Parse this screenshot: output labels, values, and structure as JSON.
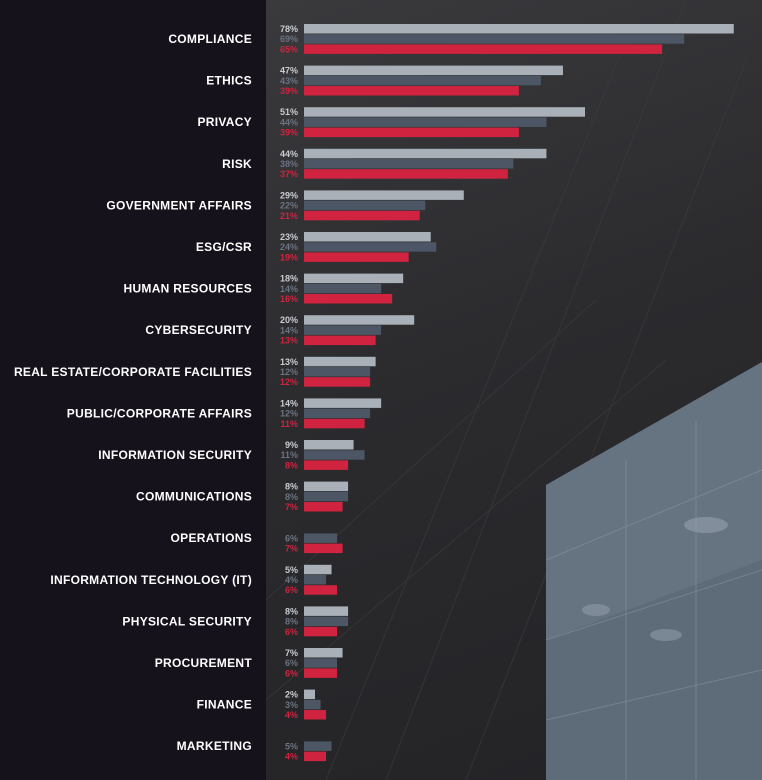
{
  "chart_data": {
    "type": "bar",
    "orientation": "horizontal",
    "grid": false,
    "legend": "none",
    "xlim": [
      0,
      80
    ],
    "categories": [
      "COMPLIANCE",
      "ETHICS",
      "PRIVACY",
      "RISK",
      "GOVERNMENT AFFAIRS",
      "ESG/CSR",
      "HUMAN RESOURCES",
      "CYBERSECURITY",
      "REAL ESTATE/CORPORATE FACILITIES",
      "PUBLIC/CORPORATE AFFAIRS",
      "INFORMATION SECURITY",
      "COMMUNICATIONS",
      "OPERATIONS",
      "INFORMATION TECHNOLOGY (IT)",
      "PHYSICAL SECURITY",
      "PROCUREMENT",
      "FINANCE",
      "MARKETING"
    ],
    "series": [
      {
        "color": "#a9b0b8",
        "label_color": "#c9cdd2",
        "values": [
          78,
          47,
          51,
          44,
          29,
          23,
          18,
          20,
          13,
          14,
          9,
          8,
          null,
          5,
          8,
          7,
          2,
          null
        ]
      },
      {
        "color": "#4c5664",
        "label_color": "#6a7380",
        "values": [
          69,
          43,
          44,
          38,
          22,
          24,
          14,
          14,
          12,
          12,
          11,
          8,
          6,
          4,
          8,
          6,
          3,
          5
        ]
      },
      {
        "color": "#d0233f",
        "label_color": "#d0233f",
        "values": [
          65,
          39,
          39,
          37,
          21,
          19,
          16,
          13,
          12,
          11,
          8,
          7,
          7,
          6,
          6,
          6,
          4,
          4
        ]
      }
    ]
  }
}
